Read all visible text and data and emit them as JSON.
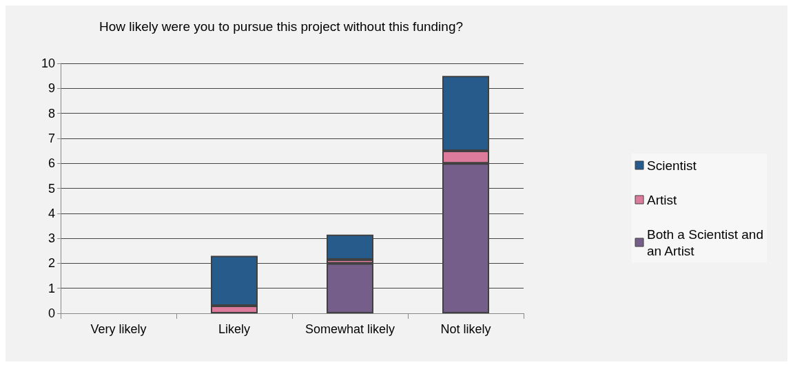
{
  "chart_data": {
    "type": "bar",
    "title": "How likely were you to pursue this project without this funding?",
    "categories": [
      "Very likely",
      "Likely",
      "Somewhat likely",
      "Not likely"
    ],
    "stacked": true,
    "series": [
      {
        "name": "Both a Scientist and an Artist",
        "color": "#755f8a",
        "values": [
          0,
          0,
          2,
          6
        ]
      },
      {
        "name": "Artist",
        "color": "#dc7b9c",
        "values": [
          0,
          0.3,
          0.15,
          0.5
        ]
      },
      {
        "name": "Scientist",
        "color": "#265b8c",
        "values": [
          0,
          2,
          1,
          3
        ]
      }
    ],
    "ylim": [
      0,
      10
    ],
    "yticks": [
      0,
      1,
      2,
      3,
      4,
      5,
      6,
      7,
      8,
      9,
      10
    ],
    "grid": "y",
    "legend": "right"
  }
}
